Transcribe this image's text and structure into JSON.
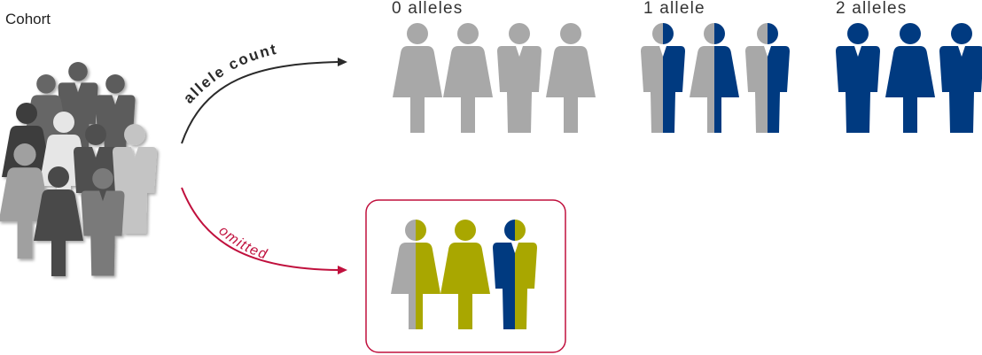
{
  "cohort_label": "Cohort",
  "flow": {
    "top_label": "allele count",
    "bottom_label": "omitted"
  },
  "groups": [
    {
      "label": "0 alleles"
    },
    {
      "label": "1 allele"
    },
    {
      "label": "2 alleles"
    }
  ],
  "colors": {
    "grey": "#a8a8a8",
    "blue": "#003a80",
    "olive": "#a9a700",
    "crimson": "#c0103d",
    "arrow": "#2a2a2a"
  },
  "icons": [
    "person-female-icon",
    "person-male-icon",
    "person-cohort-icon"
  ]
}
